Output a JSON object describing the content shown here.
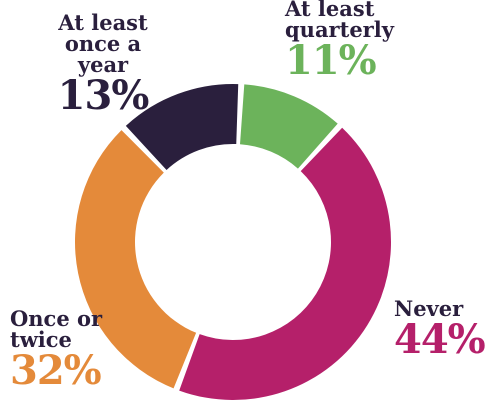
{
  "chart_data": {
    "type": "pie",
    "donut": true,
    "title": "",
    "slices": [
      {
        "label": "At least quarterly",
        "value": 11,
        "pct_text": "11%",
        "color": "#6cb35b"
      },
      {
        "label": "Never",
        "value": 44,
        "pct_text": "44%",
        "color": "#b5206a"
      },
      {
        "label": "Once or twice",
        "value": 32,
        "pct_text": "32%",
        "color": "#e48a3a"
      },
      {
        "label": "At least once a year",
        "value": 13,
        "pct_text": "13%",
        "color": "#2a1f3d"
      }
    ]
  },
  "labels": {
    "yearly": {
      "line1": "At least",
      "line2": "once a year",
      "pct": "13%"
    },
    "quarterly": {
      "line1": "At least",
      "line2": "quarterly",
      "pct": "11%"
    },
    "never": {
      "line1": "Never",
      "pct": "44%"
    },
    "once": {
      "line1": "Once or",
      "line2": "twice",
      "pct": "32%"
    }
  }
}
